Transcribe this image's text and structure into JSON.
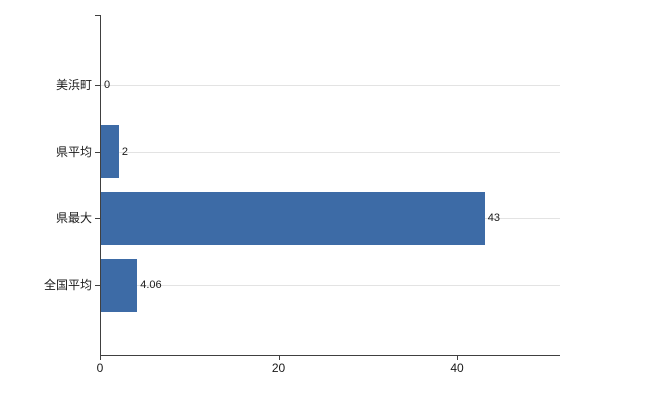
{
  "chart_data": {
    "type": "bar",
    "orientation": "horizontal",
    "title": "",
    "xlabel": "",
    "ylabel": "",
    "categories": [
      "美浜町",
      "県平均",
      "県最大",
      "全国平均"
    ],
    "values": [
      0,
      2,
      43,
      4.06
    ],
    "value_labels": [
      "0",
      "2",
      "43",
      "4.06"
    ],
    "x_ticks": [
      0,
      20,
      40
    ],
    "x_tick_labels": [
      "0",
      "20",
      "40"
    ],
    "xlim": [
      0,
      51.5
    ],
    "grid": true,
    "legend": "none",
    "bar_color": "#3d6ba6",
    "axis_color": "#404040",
    "gridline_color": "#e3e3e3",
    "background_color": "#ffffff"
  }
}
